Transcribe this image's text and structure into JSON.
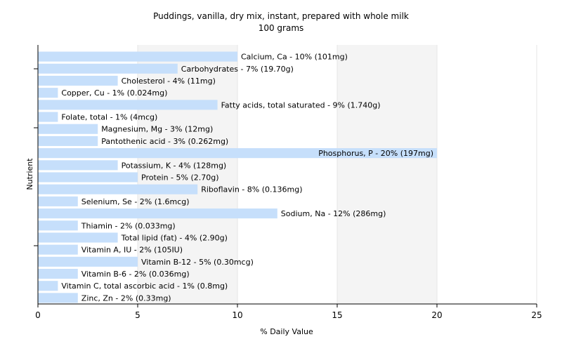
{
  "chart_data": {
    "type": "bar",
    "orientation": "horizontal",
    "title": "Puddings, vanilla, dry mix, instant, prepared with whole milk",
    "subtitle": "100 grams",
    "xlabel": "% Daily Value",
    "ylabel": "Nutrient",
    "xlim": [
      0,
      25
    ],
    "xticks": [
      0,
      5,
      10,
      15,
      20,
      25
    ],
    "grid": true,
    "colors": {
      "bar": "#c6dffb",
      "band_light": "#f4f4f4",
      "band_white": "#ffffff",
      "axis": "#000000"
    },
    "bars": [
      {
        "label": "Calcium, Ca - 10% (101mg)",
        "value": 10
      },
      {
        "label": "Carbohydrates - 7% (19.70g)",
        "value": 7
      },
      {
        "label": "Cholesterol - 4% (11mg)",
        "value": 4
      },
      {
        "label": "Copper, Cu - 1% (0.024mg)",
        "value": 1
      },
      {
        "label": "Fatty acids, total saturated - 9% (1.740g)",
        "value": 9
      },
      {
        "label": "Folate, total - 1% (4mcg)",
        "value": 1
      },
      {
        "label": "Magnesium, Mg - 3% (12mg)",
        "value": 3
      },
      {
        "label": "Pantothenic acid - 3% (0.262mg)",
        "value": 3
      },
      {
        "label": "Phosphorus, P - 20% (197mg)",
        "value": 20
      },
      {
        "label": "Potassium, K - 4% (128mg)",
        "value": 4
      },
      {
        "label": "Protein - 5% (2.70g)",
        "value": 5
      },
      {
        "label": "Riboflavin - 8% (0.136mg)",
        "value": 8
      },
      {
        "label": "Selenium, Se - 2% (1.6mcg)",
        "value": 2
      },
      {
        "label": "Sodium, Na - 12% (286mg)",
        "value": 12
      },
      {
        "label": "Thiamin - 2% (0.033mg)",
        "value": 2
      },
      {
        "label": "Total lipid (fat) - 4% (2.90g)",
        "value": 4
      },
      {
        "label": "Vitamin A, IU - 2% (105IU)",
        "value": 2
      },
      {
        "label": "Vitamin B-12 - 5% (0.30mcg)",
        "value": 5
      },
      {
        "label": "Vitamin B-6 - 2% (0.036mg)",
        "value": 2
      },
      {
        "label": "Vitamin C, total ascorbic acid - 1% (0.8mg)",
        "value": 1
      },
      {
        "label": "Zinc, Zn - 2% (0.33mg)",
        "value": 2
      }
    ]
  }
}
